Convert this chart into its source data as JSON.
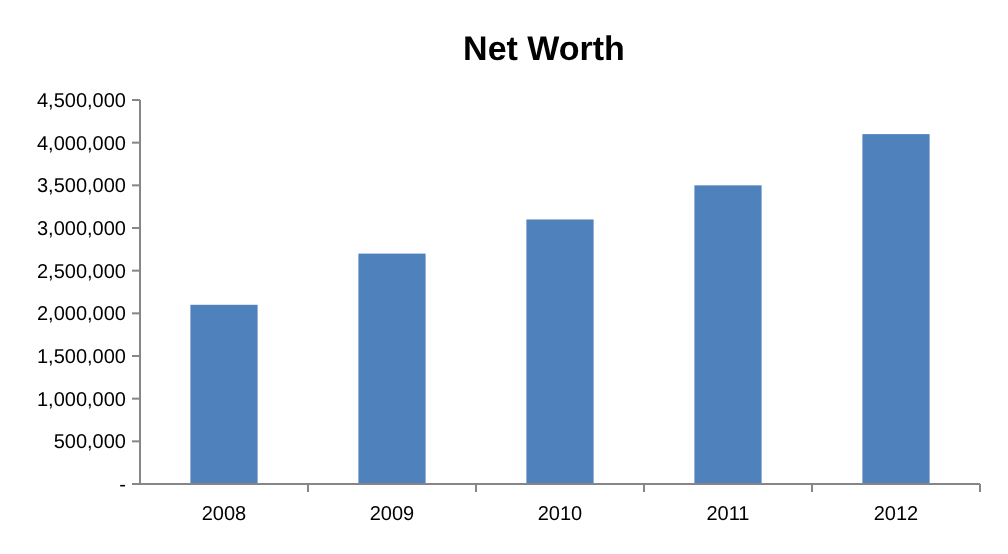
{
  "chart_data": {
    "type": "bar",
    "title": "Net Worth",
    "categories": [
      "2008",
      "2009",
      "2010",
      "2011",
      "2012"
    ],
    "values": [
      2100000,
      2700000,
      3100000,
      3500000,
      4100000
    ],
    "color": "#4f81bd",
    "ylim": [
      0,
      4500000
    ],
    "yticks": [
      {
        "value": 0,
        "label": "-"
      },
      {
        "value": 500000,
        "label": "500,000"
      },
      {
        "value": 1000000,
        "label": "1,000,000"
      },
      {
        "value": 1500000,
        "label": "1,500,000"
      },
      {
        "value": 2000000,
        "label": "2,000,000"
      },
      {
        "value": 2500000,
        "label": "2,500,000"
      },
      {
        "value": 3000000,
        "label": "3,000,000"
      },
      {
        "value": 3500000,
        "label": "3,500,000"
      },
      {
        "value": 4000000,
        "label": "4,000,000"
      },
      {
        "value": 4500000,
        "label": "4,500,000"
      }
    ],
    "grid": false
  }
}
